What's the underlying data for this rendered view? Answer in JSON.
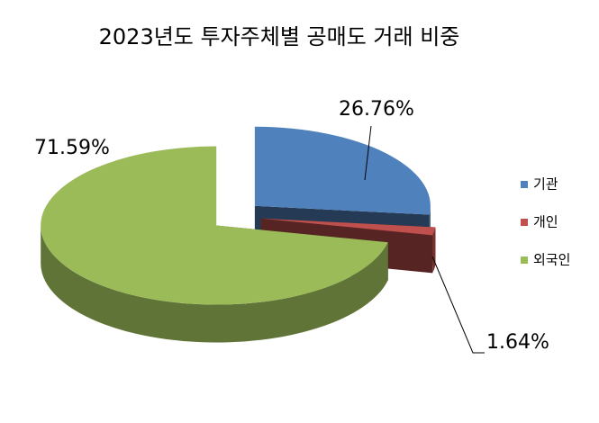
{
  "chart_data": {
    "type": "pie3d",
    "title": "2023년도 투자주체별 공매도 거래 비중",
    "categories": [
      "기관",
      "개인",
      "외국인"
    ],
    "values": [
      26.76,
      1.64,
      71.59
    ],
    "value_labels": [
      "26.76%",
      "1.64%",
      "71.59%"
    ],
    "colors": [
      "#4f81bd",
      "#c0504d",
      "#9bbb59"
    ],
    "legend": "right"
  }
}
